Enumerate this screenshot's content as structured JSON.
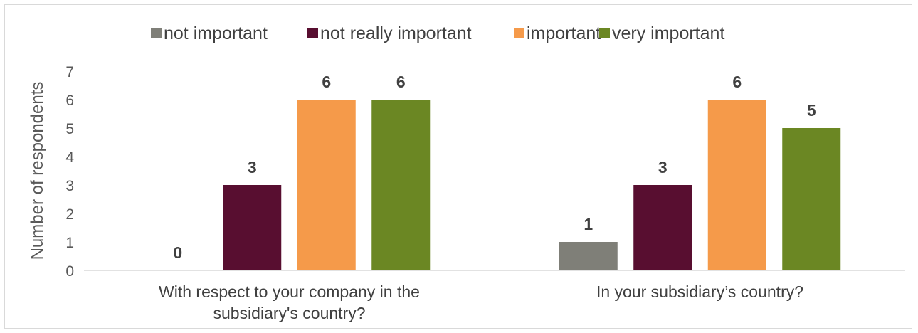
{
  "chart_data": {
    "type": "bar",
    "ylabel": "Number of respondents",
    "ylim": [
      0,
      7
    ],
    "yticks": [
      0,
      1,
      2,
      3,
      4,
      5,
      6,
      7
    ],
    "grid": false,
    "legend_position": "top",
    "categories": [
      [
        "With respect to your company in the",
        "subsidiary's country?"
      ],
      [
        "In your subsidiary’s country?"
      ]
    ],
    "series": [
      {
        "name": "not important",
        "color": "#7f7f78",
        "values": [
          0,
          1
        ]
      },
      {
        "name": "not really important",
        "color": "#580e30",
        "values": [
          3,
          3
        ]
      },
      {
        "name": "important",
        "color": "#f59a4a",
        "values": [
          6,
          6
        ]
      },
      {
        "name": "very important",
        "color": "#6b8723",
        "values": [
          6,
          5
        ]
      }
    ]
  }
}
